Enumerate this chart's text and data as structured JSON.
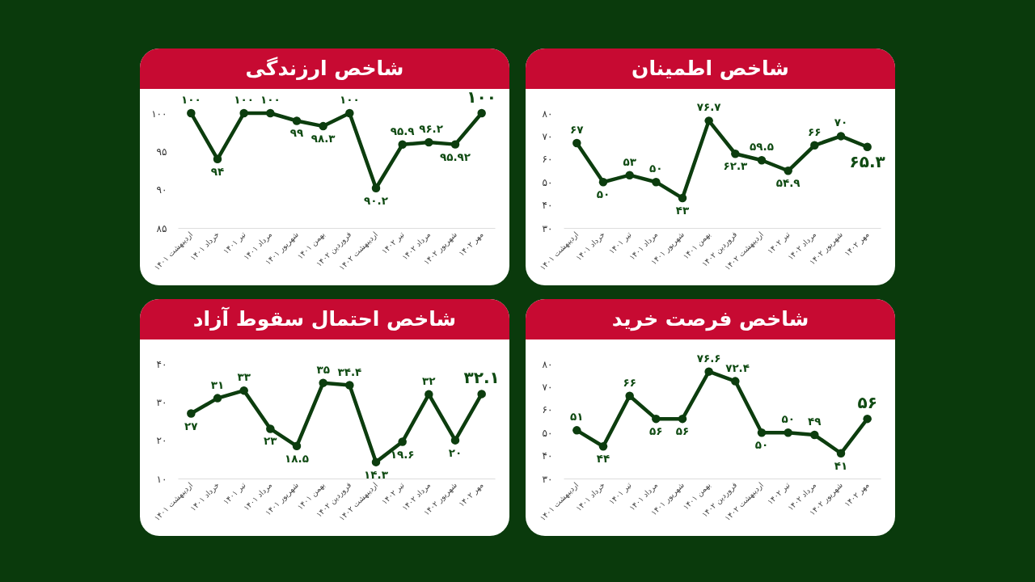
{
  "chart_data": [
    {
      "type": "line",
      "title": "شاخص اطمینان",
      "categories": [
        "اردیبهشت ۱۴۰۱",
        "خرداد ۱۴۰۱",
        "تیر ۱۴۰۱",
        "مرداد ۱۴۰۱",
        "شهریور ۱۴۰۱",
        "بهمن ۱۴۰۱",
        "فروردین ۱۴۰۲",
        "اردیبهشت ۱۴۰۲",
        "تیر ۱۴۰۲",
        "مرداد ۱۴۰۲",
        "شهریور ۱۴۰۲",
        "مهر ۱۴۰۲"
      ],
      "values": [
        67,
        50,
        53,
        50,
        43,
        76.7,
        62.3,
        59.5,
        54.9,
        66,
        70,
        65.3
      ],
      "value_labels": [
        "۶۷",
        "۵۰",
        "۵۳",
        "۵۰",
        "۴۳",
        "۷۶.۷",
        "۶۲.۳",
        "۵۹.۵",
        "۵۴.۹",
        "۶۶",
        "۷۰",
        "۶۵.۳"
      ],
      "color": "#0c3d0e",
      "ylim": [
        30,
        80
      ],
      "yticks": [
        {
          "value": 30,
          "label": "۳۰"
        },
        {
          "value": 40,
          "label": "۴۰"
        },
        {
          "value": 50,
          "label": "۵۰"
        },
        {
          "value": 60,
          "label": "۶۰"
        },
        {
          "value": 70,
          "label": "۷۰"
        },
        {
          "value": 80,
          "label": "۸۰"
        }
      ],
      "marker": "circle"
    },
    {
      "type": "line",
      "title": "شاخص ارزندگی",
      "categories": [
        "اردیبهشت ۱۴۰۱",
        "خرداد ۱۴۰۱",
        "تیر ۱۴۰۱",
        "مرداد ۱۴۰۱",
        "شهریور ۱۴۰۱",
        "بهمن ۱۴۰۱",
        "فروردین ۱۴۰۲",
        "اردیبهشت ۱۴۰۲",
        "تیر ۱۴۰۲",
        "مرداد ۱۴۰۲",
        "شهریور ۱۴۰۲",
        "مهر ۱۴۰۲"
      ],
      "values": [
        100,
        94,
        100,
        100,
        99,
        98.3,
        100,
        90.2,
        95.9,
        96.2,
        95.92,
        100
      ],
      "value_labels": [
        "۱۰۰",
        "۹۴",
        "۱۰۰",
        "۱۰۰",
        "۹۹",
        "۹۸.۳",
        "۱۰۰",
        "۹۰.۲",
        "۹۵.۹",
        "۹۶.۲",
        "۹۵.۹۲",
        "۱۰۰"
      ],
      "color": "#0c3d0e",
      "ylim": [
        85,
        100
      ],
      "yticks": [
        {
          "value": 85,
          "label": "۸۵"
        },
        {
          "value": 90,
          "label": "۹۰"
        },
        {
          "value": 95,
          "label": "۹۵"
        },
        {
          "value": 100,
          "label": "۱۰۰"
        }
      ],
      "marker": "circle"
    },
    {
      "type": "line",
      "title": "شاخص فرصت خرید",
      "categories": [
        "اردیبهشت ۱۴۰۱",
        "خرداد ۱۴۰۱",
        "تیر ۱۴۰۱",
        "مرداد ۱۴۰۱",
        "شهریور ۱۴۰۱",
        "بهمن ۱۴۰۱",
        "فروردین ۱۴۰۲",
        "اردیبهشت ۱۴۰۲",
        "تیر ۱۴۰۲",
        "مرداد ۱۴۰۲",
        "شهریور ۱۴۰۲",
        "مهر ۱۴۰۲"
      ],
      "values": [
        51,
        44,
        66,
        56,
        56,
        76.6,
        72.4,
        50,
        50,
        49,
        41,
        56
      ],
      "value_labels": [
        "۵۱",
        "۴۴",
        "۶۶",
        "۵۶",
        "۵۶",
        "۷۶.۶",
        "۷۲.۴",
        "۵۰",
        "۵۰",
        "۴۹",
        "۴۱",
        "۵۶"
      ],
      "color": "#0c3d0e",
      "ylim": [
        30,
        80
      ],
      "yticks": [
        {
          "value": 30,
          "label": "۳۰"
        },
        {
          "value": 40,
          "label": "۴۰"
        },
        {
          "value": 50,
          "label": "۵۰"
        },
        {
          "value": 60,
          "label": "۶۰"
        },
        {
          "value": 70,
          "label": "۷۰"
        },
        {
          "value": 80,
          "label": "۸۰"
        }
      ],
      "marker": "circle"
    },
    {
      "type": "line",
      "title": "شاخص احتمال سقوط آزاد",
      "categories": [
        "اردیبهشت ۱۴۰۱",
        "خرداد ۱۴۰۱",
        "تیر ۱۴۰۱",
        "مرداد ۱۴۰۱",
        "شهریور ۱۴۰۱",
        "بهمن ۱۴۰۱",
        "فروردین ۱۴۰۲",
        "اردیبهشت ۱۴۰۲",
        "تیر ۱۴۰۲",
        "مرداد ۱۴۰۲",
        "شهریور ۱۴۰۲",
        "مهر ۱۴۰۲"
      ],
      "values": [
        27,
        31,
        33,
        23,
        18.5,
        35,
        34.4,
        14.3,
        19.6,
        32,
        20,
        32.1
      ],
      "value_labels": [
        "۲۷",
        "۳۱",
        "۳۳",
        "۲۳",
        "۱۸.۵",
        "۳۵",
        "۳۴.۴",
        "۱۴.۳",
        "۱۹.۶",
        "۳۲",
        "۲۰",
        "۳۲.۱"
      ],
      "color": "#0c3d0e",
      "ylim": [
        10,
        40
      ],
      "yticks": [
        {
          "value": 10,
          "label": "۱۰"
        },
        {
          "value": 20,
          "label": "۲۰"
        },
        {
          "value": 30,
          "label": "۳۰"
        },
        {
          "value": 40,
          "label": "۴۰"
        }
      ],
      "marker": "circle"
    }
  ]
}
